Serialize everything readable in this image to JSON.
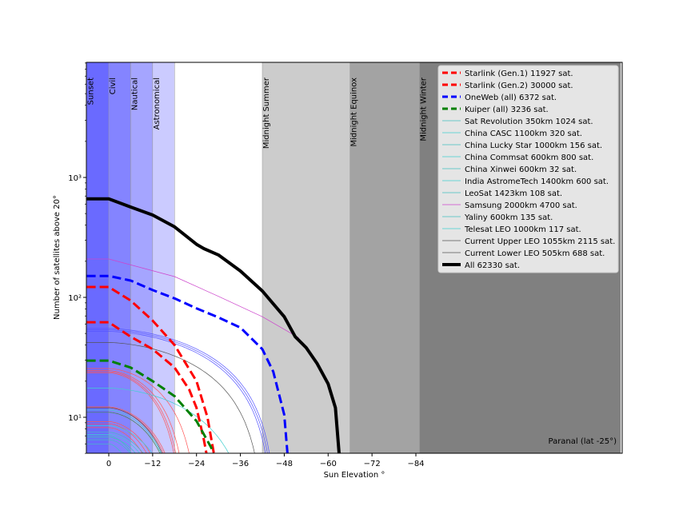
{
  "chart_data": {
    "type": "line",
    "title": "",
    "xlabel": "Sun Elevation °",
    "ylabel": "Number of satellites above 20°",
    "xlim": [
      6,
      -140
    ],
    "ylim": [
      5,
      9000
    ],
    "yscale": "log",
    "x_ticks": [
      0,
      -12,
      -24,
      -36,
      -48,
      -60,
      -72,
      -84
    ],
    "x_tick_labels": [
      "0",
      "−12",
      "−24",
      "−36",
      "−48",
      "−60",
      "−72",
      "−84"
    ],
    "y_ticks": [
      1000,
      100,
      10
    ],
    "y_tick_labels": [
      "10³",
      "10²",
      "10¹"
    ],
    "annotation": "Paranal (lat -25°)",
    "bands": [
      {
        "label": "Sunset",
        "from": 6,
        "to": 0,
        "color": "#6a6aff"
      },
      {
        "label": "Civil",
        "from": 0,
        "to": -6,
        "color": "#8484ff"
      },
      {
        "label": "Nautical",
        "from": -6,
        "to": -12,
        "color": "#a5a5ff"
      },
      {
        "label": "Astronomical",
        "from": -12,
        "to": -18,
        "color": "#cbcbff"
      },
      {
        "label": "Midnight Summer",
        "from": -42,
        "to": -66,
        "color": "#cccccc"
      },
      {
        "label": "Midnight Equinox",
        "from": -66,
        "to": -85,
        "color": "#a3a3a3"
      },
      {
        "label": "Midnight Winter",
        "from": -85,
        "to": -140,
        "color": "#808080"
      }
    ],
    "series": [
      {
        "name": "Starlink (Gen.1) 11927 sat.",
        "color": "#ff0000",
        "style": "dashed",
        "points": [
          [
            0,
            62
          ],
          [
            -6,
            47
          ],
          [
            -12,
            37
          ],
          [
            -18,
            26
          ],
          [
            -22,
            17
          ],
          [
            -24,
            12
          ],
          [
            -26,
            6.5
          ],
          [
            -27,
            4.5
          ]
        ]
      },
      {
        "name": "Starlink (Gen.2) 30000 sat.",
        "color": "#ff0000",
        "style": "dashed",
        "points": [
          [
            0,
            122
          ],
          [
            -6,
            94
          ],
          [
            -12,
            64
          ],
          [
            -18,
            40
          ],
          [
            -24,
            20
          ],
          [
            -27,
            10
          ],
          [
            -29,
            4.5
          ]
        ]
      },
      {
        "name": "OneWeb (all)  6372 sat.",
        "color": "#0000ff",
        "style": "dashed",
        "points": [
          [
            0,
            151
          ],
          [
            -6,
            138
          ],
          [
            -12,
            115
          ],
          [
            -18,
            98
          ],
          [
            -24,
            81
          ],
          [
            -30,
            68
          ],
          [
            -36,
            56
          ],
          [
            -42,
            37
          ],
          [
            -45,
            24
          ],
          [
            -48,
            10.5
          ],
          [
            -49,
            4.5
          ]
        ]
      },
      {
        "name": "Kuiper (all)  3236 sat.",
        "color": "#008000",
        "style": "dashed",
        "points": [
          [
            0,
            29.7
          ],
          [
            -6,
            26
          ],
          [
            -12,
            20
          ],
          [
            -18,
            15
          ],
          [
            -24,
            9.3
          ],
          [
            -28,
            5.6
          ],
          [
            -29,
            4.5
          ]
        ]
      },
      {
        "name": "Sat Revolution  350km 1024 sat.",
        "color": "#40bfbf",
        "style": "thin",
        "n0": 7.0,
        "end": -13
      },
      {
        "name": "China CASC 1100km 320 sat.",
        "color": "#40cfcf",
        "style": "thin",
        "n0": 17.5,
        "end": -40
      },
      {
        "name": "China Lucky Star 1000km 156 sat.",
        "color": "#40bfbf",
        "style": "thin",
        "n0": 7.5,
        "end": -18
      },
      {
        "name": "China Commsat  600km 800 sat.",
        "color": "#40cfcf",
        "style": "thin",
        "n0": 11.5,
        "end": -20
      },
      {
        "name": "China Xinwei  600km 32 sat.",
        "color": "#40bfbf",
        "style": "thin",
        "n0": 6.0,
        "end": -10
      },
      {
        "name": "India AstromeTech 1400km 600 sat.",
        "color": "#40cfcf",
        "style": "thin",
        "n0": 8.5,
        "end": -20
      },
      {
        "name": "LeoSat 1423km 108 sat.",
        "color": "#40bfbf",
        "style": "thin",
        "n0": 6.8,
        "end": -16
      },
      {
        "name": "Samsung 2000km 4700 sat.",
        "color": "#cc44cc",
        "style": "thin",
        "points": [
          [
            0,
            209
          ],
          [
            -18,
            149
          ],
          [
            -30,
            102
          ],
          [
            -42,
            69
          ],
          [
            -52,
            46
          ]
        ]
      },
      {
        "name": "Yaliny  600km 135 sat.",
        "color": "#40bfbf",
        "style": "thin",
        "n0": 6.5,
        "end": -14
      },
      {
        "name": "Telesat LEO 1000km 117 sat.",
        "color": "#40cfcf",
        "style": "thin",
        "n0": 7.2,
        "end": -17
      },
      {
        "name": "Current Upper LEO 1055km 2115 sat.",
        "color": "#555555",
        "style": "thin",
        "n0": 42,
        "end": -43
      },
      {
        "name": "Current Lower LEO  505km 688 sat.",
        "color": "#555555",
        "style": "thin",
        "n0": 12,
        "end": -20
      },
      {
        "name": "All  62330 sat.",
        "color": "#000000",
        "style": "bold",
        "points": [
          [
            0,
            664
          ],
          [
            -6,
            567
          ],
          [
            -12,
            486
          ],
          [
            -18,
            387
          ],
          [
            -24,
            277
          ],
          [
            -26,
            255
          ],
          [
            -30,
            226
          ],
          [
            -36,
            166
          ],
          [
            -42,
            113
          ],
          [
            -48,
            69
          ],
          [
            -51,
            47
          ],
          [
            -54,
            38
          ],
          [
            -57,
            28
          ],
          [
            -60,
            19
          ],
          [
            -62,
            12
          ],
          [
            -63,
            5
          ],
          [
            -63.3,
            4.5
          ]
        ]
      }
    ],
    "unlabeled_traces": [
      {
        "color": "#5555ff",
        "n0": 55,
        "end": -46.5
      },
      {
        "color": "#5555ff",
        "n0": 53.5,
        "end": -46
      },
      {
        "color": "#5555ff",
        "n0": 52,
        "end": -45.5
      },
      {
        "color": "#ff5555",
        "n0": 25.5,
        "end": -25
      },
      {
        "color": "#ff5555",
        "n0": 24.5,
        "end": -22
      },
      {
        "color": "#ff5555",
        "n0": 24,
        "end": -21
      },
      {
        "color": "#ff5555",
        "n0": 23.5,
        "end": -20.5
      },
      {
        "color": "#ff5555",
        "n0": 12.2,
        "end": -21
      },
      {
        "color": "#ff5555",
        "n0": 12,
        "end": -20.5
      },
      {
        "color": "#448844",
        "n0": 11,
        "end": -20
      },
      {
        "color": "#ff5555",
        "n0": 9.2,
        "end": -18
      },
      {
        "color": "#ff5555",
        "n0": 8.8,
        "end": -17
      },
      {
        "color": "#ff5555",
        "n0": 8.2,
        "end": -16
      }
    ]
  }
}
